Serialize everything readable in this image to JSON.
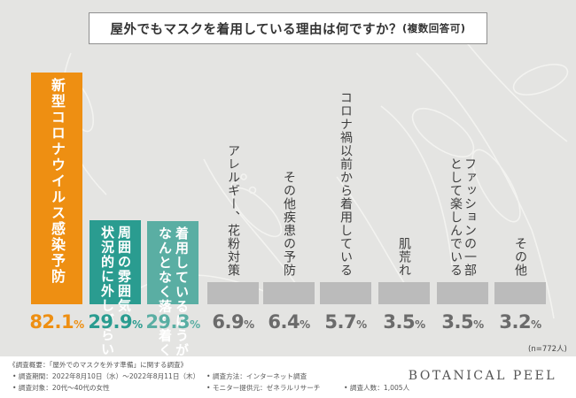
{
  "title": "屋外でもマスクを着用している理由は何ですか？",
  "title_sub": "(複数回答可)",
  "chart_data": {
    "type": "bar",
    "title": "屋外でもマスクを着用している理由は何ですか？(複数回答可)",
    "categories": [
      "新型コロナウイルス感染予防",
      "周囲の雰囲気、状況的に外しづらい",
      "着用しているほうがなんとなく落ち着く",
      "アレルギー、花粉対策",
      "その他疾患の予防",
      "コロナ禍以前から着用している",
      "肌荒れ",
      "ファッションの一部として楽しんでいる",
      "その他"
    ],
    "label_lines": [
      [
        "新型コロナウイルス感染予防"
      ],
      [
        "周囲の雰囲気、",
        "状況的に外しづらい"
      ],
      [
        "着用しているほうが",
        "なんとなく落ち着く"
      ],
      [
        "アレルギー、花粉対策"
      ],
      [
        "その他疾患の予防"
      ],
      [
        "コロナ禍以前から着用している"
      ],
      [
        "肌荒れ"
      ],
      [
        "ファッションの一部",
        "として楽しんでいる"
      ],
      [
        "その他"
      ]
    ],
    "values": [
      82.1,
      29.9,
      29.3,
      6.9,
      6.4,
      5.7,
      3.5,
      3.5,
      3.2
    ],
    "value_labels": [
      "82.1",
      "29.9",
      "29.3",
      "6.9",
      "6.4",
      "5.7",
      "3.5",
      "3.5",
      "3.2"
    ],
    "unit": "%",
    "colors": [
      "#ee8f12",
      "#2a9c90",
      "#5aaea3",
      "#bbbbbb",
      "#bbbbbb",
      "#bbbbbb",
      "#bbbbbb",
      "#bbbbbb",
      "#bbbbbb"
    ],
    "value_colors": [
      "#ee8f12",
      "#2a9c90",
      "#5aaea3",
      "#6b6b6b",
      "#6b6b6b",
      "#6b6b6b",
      "#6b6b6b",
      "#6b6b6b",
      "#6b6b6b"
    ],
    "ylim": [
      0,
      100
    ],
    "grid": false,
    "legend": "none"
  },
  "sample_note": "(n=772人)",
  "footer": {
    "overview": "《調査概要：「屋外でのマスクを外す準備」に関する調査》",
    "period": "• 調査期間：2022年8月10日（水）〜2022年8月11日（木）",
    "method": "• 調査方法：インターネット調査",
    "target": "• 調査対象：20代〜40代の女性",
    "provider": "• モニター提供元：ゼネラルリサーチ",
    "count": "• 調査人数：1,005人",
    "brand": "BOTANICAL PEEL"
  }
}
